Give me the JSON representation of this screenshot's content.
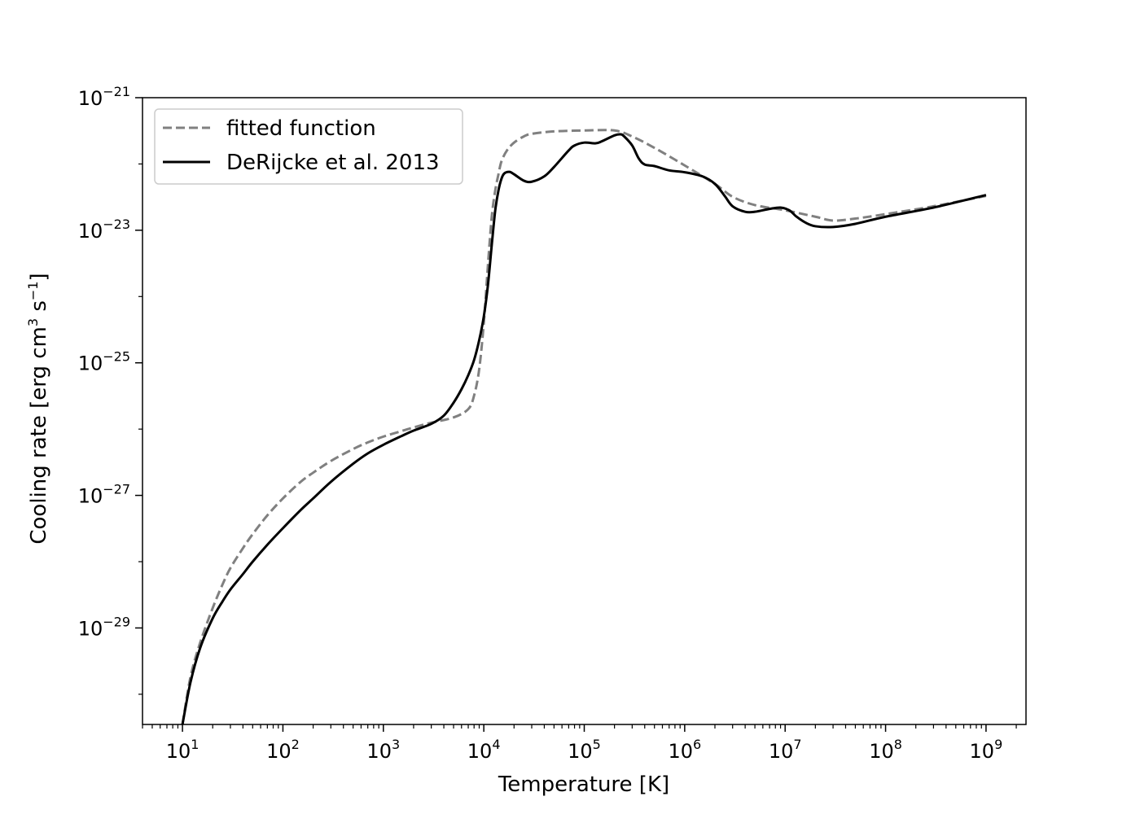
{
  "chart_data": {
    "type": "line",
    "title": "",
    "xlabel": "Temperature [K]",
    "ylabel_parts": [
      "Cooling rate [erg cm",
      "3",
      " s",
      "−1",
      "]"
    ],
    "xscale": "log",
    "yscale": "log",
    "xlim": [
      4,
      2500000000
    ],
    "ylim": [
      3.5e-31,
      1e-21
    ],
    "grid": false,
    "legend": "top-left",
    "x_ticks": [
      {
        "base": "10",
        "exp": "1",
        "value": 10
      },
      {
        "base": "10",
        "exp": "2",
        "value": 100
      },
      {
        "base": "10",
        "exp": "3",
        "value": 1000
      },
      {
        "base": "10",
        "exp": "4",
        "value": 10000
      },
      {
        "base": "10",
        "exp": "5",
        "value": 100000
      },
      {
        "base": "10",
        "exp": "6",
        "value": 1000000
      },
      {
        "base": "10",
        "exp": "7",
        "value": 10000000
      },
      {
        "base": "10",
        "exp": "8",
        "value": 100000000
      },
      {
        "base": "10",
        "exp": "9",
        "value": 1000000000
      }
    ],
    "y_ticks": [
      {
        "base": "10",
        "exp": "−29",
        "value": 1e-29
      },
      {
        "base": "10",
        "exp": "−27",
        "value": 1e-27
      },
      {
        "base": "10",
        "exp": "−25",
        "value": 1e-25
      },
      {
        "base": "10",
        "exp": "−23",
        "value": 1e-23
      },
      {
        "base": "10",
        "exp": "−21",
        "value": 1e-21
      }
    ],
    "series": [
      {
        "name": "fitted function",
        "color": "#808080",
        "dash": true,
        "points": [
          [
            10,
            3.5e-31
          ],
          [
            12,
            1.8e-30
          ],
          [
            15,
            6e-30
          ],
          [
            20,
            2e-29
          ],
          [
            25,
            4.5e-29
          ],
          [
            30,
            8e-29
          ],
          [
            40,
            1.6e-28
          ],
          [
            50,
            2.6e-28
          ],
          [
            70,
            5e-28
          ],
          [
            100,
            9e-28
          ],
          [
            150,
            1.6e-27
          ],
          [
            200,
            2.2e-27
          ],
          [
            300,
            3.3e-27
          ],
          [
            500,
            5e-27
          ],
          [
            700,
            6.3e-27
          ],
          [
            1000,
            7.7e-27
          ],
          [
            1500,
            9.3e-27
          ],
          [
            2000,
            1.06e-26
          ],
          [
            3000,
            1.25e-26
          ],
          [
            5000,
            1.5e-26
          ],
          [
            7000,
            2e-26
          ],
          [
            8000,
            3.2e-26
          ],
          [
            9000,
            8e-26
          ],
          [
            10000,
            4e-25
          ],
          [
            11000,
            3e-24
          ],
          [
            12000,
            1.6e-23
          ],
          [
            13000,
            4e-23
          ],
          [
            14000,
            7e-23
          ],
          [
            15000,
            1.1e-22
          ],
          [
            17000,
            1.6e-22
          ],
          [
            20000,
            2.1e-22
          ],
          [
            25000,
            2.6e-22
          ],
          [
            30000,
            2.85e-22
          ],
          [
            50000,
            3.1e-22
          ],
          [
            100000,
            3.2e-22
          ],
          [
            200000,
            3.2e-22
          ],
          [
            300000,
            2.6e-22
          ],
          [
            500000,
            1.75e-22
          ],
          [
            1000000,
            9.5e-23
          ],
          [
            2000000,
            5e-23
          ],
          [
            3000000,
            3.2e-23
          ],
          [
            5000000,
            2.4e-23
          ],
          [
            10000000,
            2e-23
          ],
          [
            20000000,
            1.6e-23
          ],
          [
            30000000,
            1.4e-23
          ],
          [
            50000000,
            1.5e-23
          ],
          [
            100000000,
            1.75e-23
          ],
          [
            300000000,
            2.3e-23
          ],
          [
            1000000000,
            3.3e-23
          ]
        ]
      },
      {
        "name": "DeRijcke et al. 2013",
        "color": "#000000",
        "dash": false,
        "points": [
          [
            10,
            3.5e-31
          ],
          [
            12,
            1.5e-30
          ],
          [
            15,
            5e-30
          ],
          [
            20,
            1.4e-29
          ],
          [
            25,
            2.5e-29
          ],
          [
            30,
            3.8e-29
          ],
          [
            40,
            6.5e-29
          ],
          [
            50,
            1e-28
          ],
          [
            70,
            1.8e-28
          ],
          [
            100,
            3.2e-28
          ],
          [
            150,
            6e-28
          ],
          [
            200,
            9e-28
          ],
          [
            300,
            1.6e-27
          ],
          [
            500,
            3e-27
          ],
          [
            700,
            4.3e-27
          ],
          [
            1000,
            5.8e-27
          ],
          [
            1500,
            7.8e-27
          ],
          [
            2000,
            9.5e-27
          ],
          [
            3000,
            1.2e-26
          ],
          [
            4000,
            1.6e-26
          ],
          [
            5000,
            2.5e-26
          ],
          [
            6000,
            4e-26
          ],
          [
            7000,
            6.5e-26
          ],
          [
            8000,
            1.1e-25
          ],
          [
            9000,
            2.2e-25
          ],
          [
            10000,
            5e-25
          ],
          [
            11000,
            1.5e-24
          ],
          [
            12000,
            6e-24
          ],
          [
            13000,
            2e-23
          ],
          [
            14000,
            4e-23
          ],
          [
            15000,
            6e-23
          ],
          [
            16000,
            7.2e-23
          ],
          [
            18000,
            7.6e-23
          ],
          [
            20000,
            7e-23
          ],
          [
            25000,
            5.6e-23
          ],
          [
            30000,
            5.4e-23
          ],
          [
            40000,
            6.5e-23
          ],
          [
            50000,
            9e-23
          ],
          [
            70000,
            1.6e-22
          ],
          [
            80000,
            1.9e-22
          ],
          [
            100000,
            2.1e-22
          ],
          [
            130000,
            2.05e-22
          ],
          [
            150000,
            2.2e-22
          ],
          [
            200000,
            2.7e-22
          ],
          [
            230000,
            2.8e-22
          ],
          [
            250000,
            2.6e-22
          ],
          [
            300000,
            1.9e-22
          ],
          [
            350000,
            1.2e-22
          ],
          [
            400000,
            9.8e-23
          ],
          [
            500000,
            9.3e-23
          ],
          [
            700000,
            8e-23
          ],
          [
            1000000,
            7.5e-23
          ],
          [
            1500000,
            6.5e-23
          ],
          [
            2000000,
            5e-23
          ],
          [
            2500000,
            3.3e-23
          ],
          [
            3000000,
            2.3e-23
          ],
          [
            4000000,
            1.9e-23
          ],
          [
            5000000,
            1.9e-23
          ],
          [
            7000000,
            2.1e-23
          ],
          [
            9000000,
            2.2e-23
          ],
          [
            11000000,
            2e-23
          ],
          [
            13000000,
            1.6e-23
          ],
          [
            16000000,
            1.3e-23
          ],
          [
            20000000,
            1.15e-23
          ],
          [
            30000000,
            1.12e-23
          ],
          [
            50000000,
            1.25e-23
          ],
          [
            100000000,
            1.6e-23
          ],
          [
            300000000,
            2.2e-23
          ],
          [
            1000000000,
            3.4e-23
          ]
        ]
      }
    ]
  }
}
